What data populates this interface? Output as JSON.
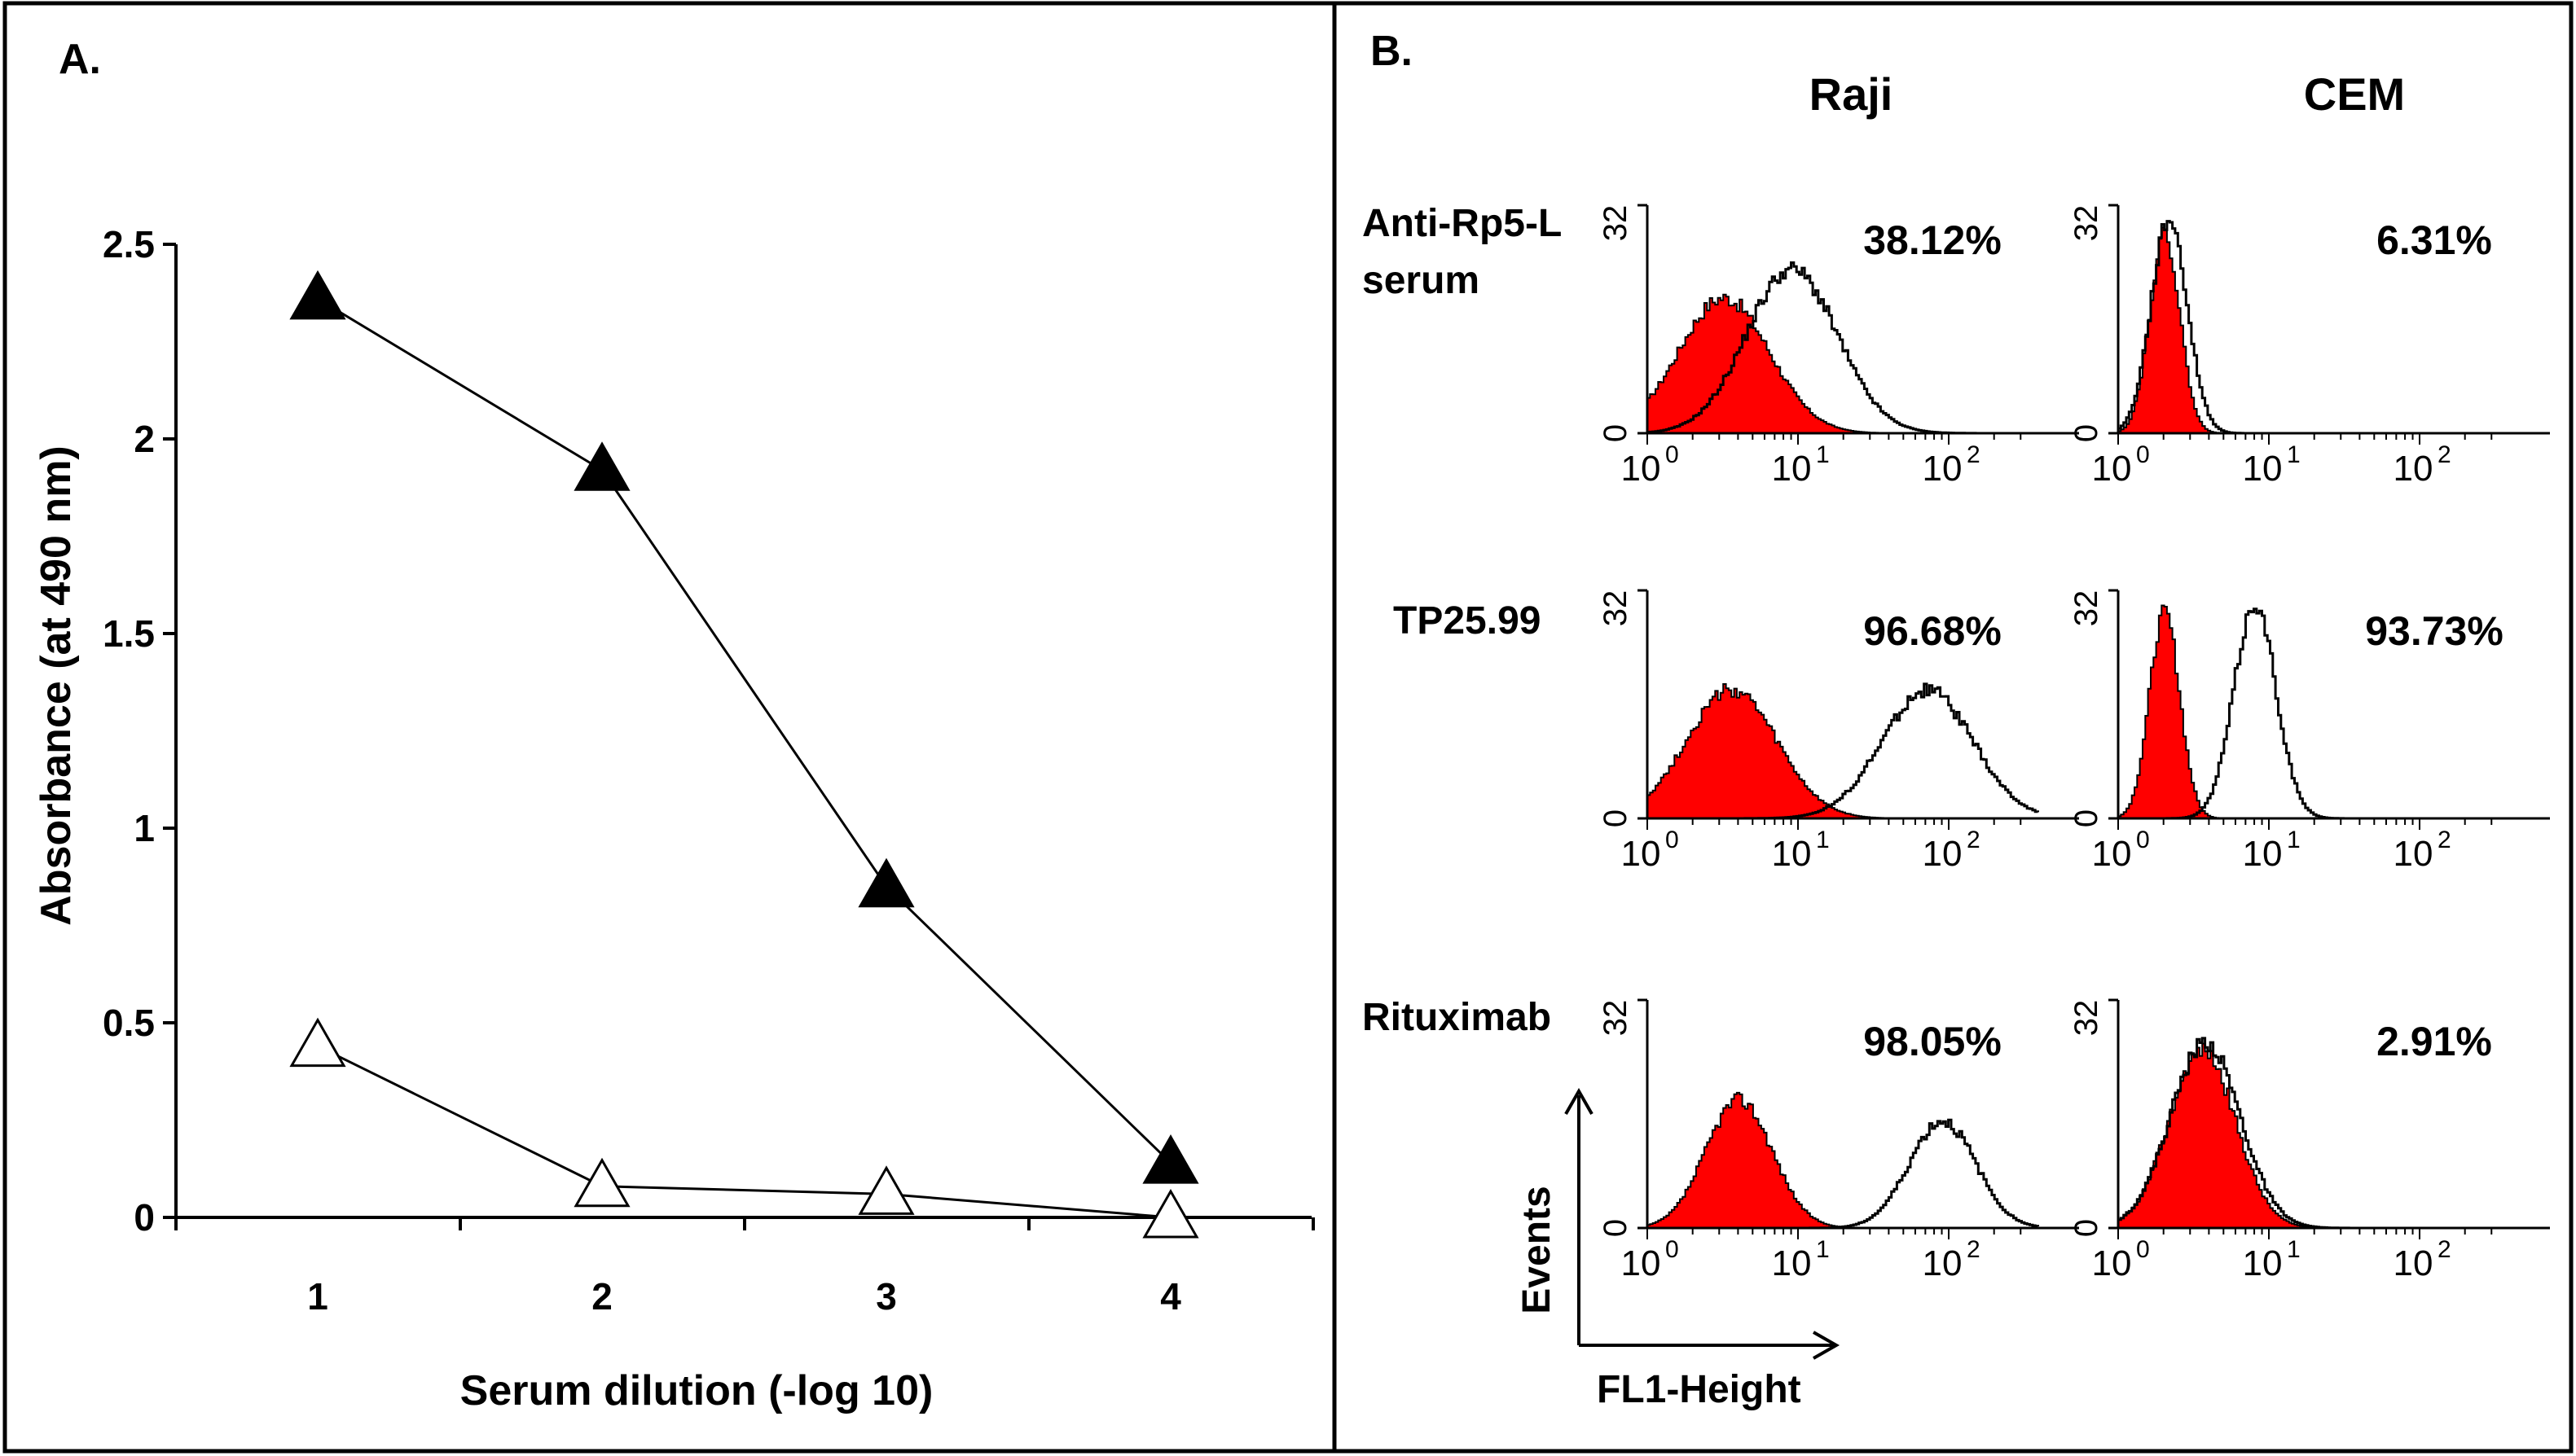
{
  "colors": {
    "filled": "#000000",
    "control_fill": "#ff0000",
    "outline": "#000000",
    "frame": "#000000"
  },
  "panelA": {
    "label": "A.",
    "chart_data": {
      "type": "line",
      "title": "",
      "xlabel": "Serum dilution (-log 10)",
      "ylabel": "Absorbance (at 490 nm)",
      "x": [
        1,
        2,
        3,
        4
      ],
      "xticks": [
        "1",
        "2",
        "3",
        "4"
      ],
      "yticks": [
        "0",
        "0.5",
        "1",
        "1.5",
        "2",
        "2.5"
      ],
      "ylim": [
        0,
        2.5
      ],
      "series": [
        {
          "name": "filled triangles",
          "marker": "filled-triangle",
          "values": [
            2.36,
            1.92,
            0.85,
            0.14
          ]
        },
        {
          "name": "open triangles",
          "marker": "open-triangle",
          "values": [
            0.44,
            0.08,
            0.06,
            0.0
          ]
        }
      ]
    }
  },
  "panelB": {
    "label": "B.",
    "columns": [
      "Raji",
      "CEM"
    ],
    "rows": [
      {
        "label_lines": [
          "Anti-Rp5-L",
          "serum"
        ],
        "percents": [
          "38.12%",
          "6.31%"
        ]
      },
      {
        "label_lines": [
          "TP25.99"
        ],
        "percents": [
          "96.68%",
          "93.73%"
        ]
      },
      {
        "label_lines": [
          "Rituximab"
        ],
        "percents": [
          "98.05%",
          "2.91%"
        ]
      }
    ],
    "y_ticks": [
      "0",
      "32"
    ],
    "x_tick_base": "10",
    "x_tick_exps": [
      "0",
      "1",
      "2"
    ],
    "axis_legend": {
      "y_label": "Events",
      "x_label": "FL1-Height"
    },
    "chart_data": {
      "type": "area",
      "x_scale": "log",
      "xlim": [
        0,
        2.6
      ],
      "ylim": [
        0,
        32
      ],
      "ylabel": "Events",
      "xlabel": "FL1-Height",
      "histograms": [
        {
          "cell": "Raji",
          "sample": "Anti-Rp5-L serum",
          "control_peak_log": 0.5,
          "control_height": 19,
          "control_width": 0.3,
          "test_peak_log": 0.95,
          "test_height": 23,
          "test_width": 0.3,
          "positive": "38.12%"
        },
        {
          "cell": "CEM",
          "sample": "Anti-Rp5-L serum",
          "control_peak_log": 0.3,
          "control_height": 28,
          "control_width": 0.1,
          "test_peak_log": 0.33,
          "test_height": 30,
          "test_width": 0.12,
          "positive": "6.31%"
        },
        {
          "cell": "Raji",
          "sample": "TP25.99",
          "control_peak_log": 0.55,
          "control_height": 18,
          "control_width": 0.3,
          "test_peak_log": 1.85,
          "test_height": 18,
          "test_width": 0.3,
          "positive": "96.68%"
        },
        {
          "cell": "CEM",
          "sample": "TP25.99",
          "control_peak_log": 0.3,
          "control_height": 29,
          "control_width": 0.1,
          "test_peak_log": 0.9,
          "test_height": 30,
          "test_width": 0.14,
          "positive": "93.73%"
        },
        {
          "cell": "Raji",
          "sample": "Rituximab",
          "control_peak_log": 0.6,
          "control_height": 18,
          "control_width": 0.22,
          "test_peak_log": 1.95,
          "test_height": 15,
          "test_width": 0.22,
          "positive": "98.05%"
        },
        {
          "cell": "CEM",
          "sample": "Rituximab",
          "control_peak_log": 0.55,
          "control_height": 25,
          "control_width": 0.22,
          "test_peak_log": 0.57,
          "test_height": 26,
          "test_width": 0.23,
          "positive": "2.91%"
        }
      ]
    }
  }
}
